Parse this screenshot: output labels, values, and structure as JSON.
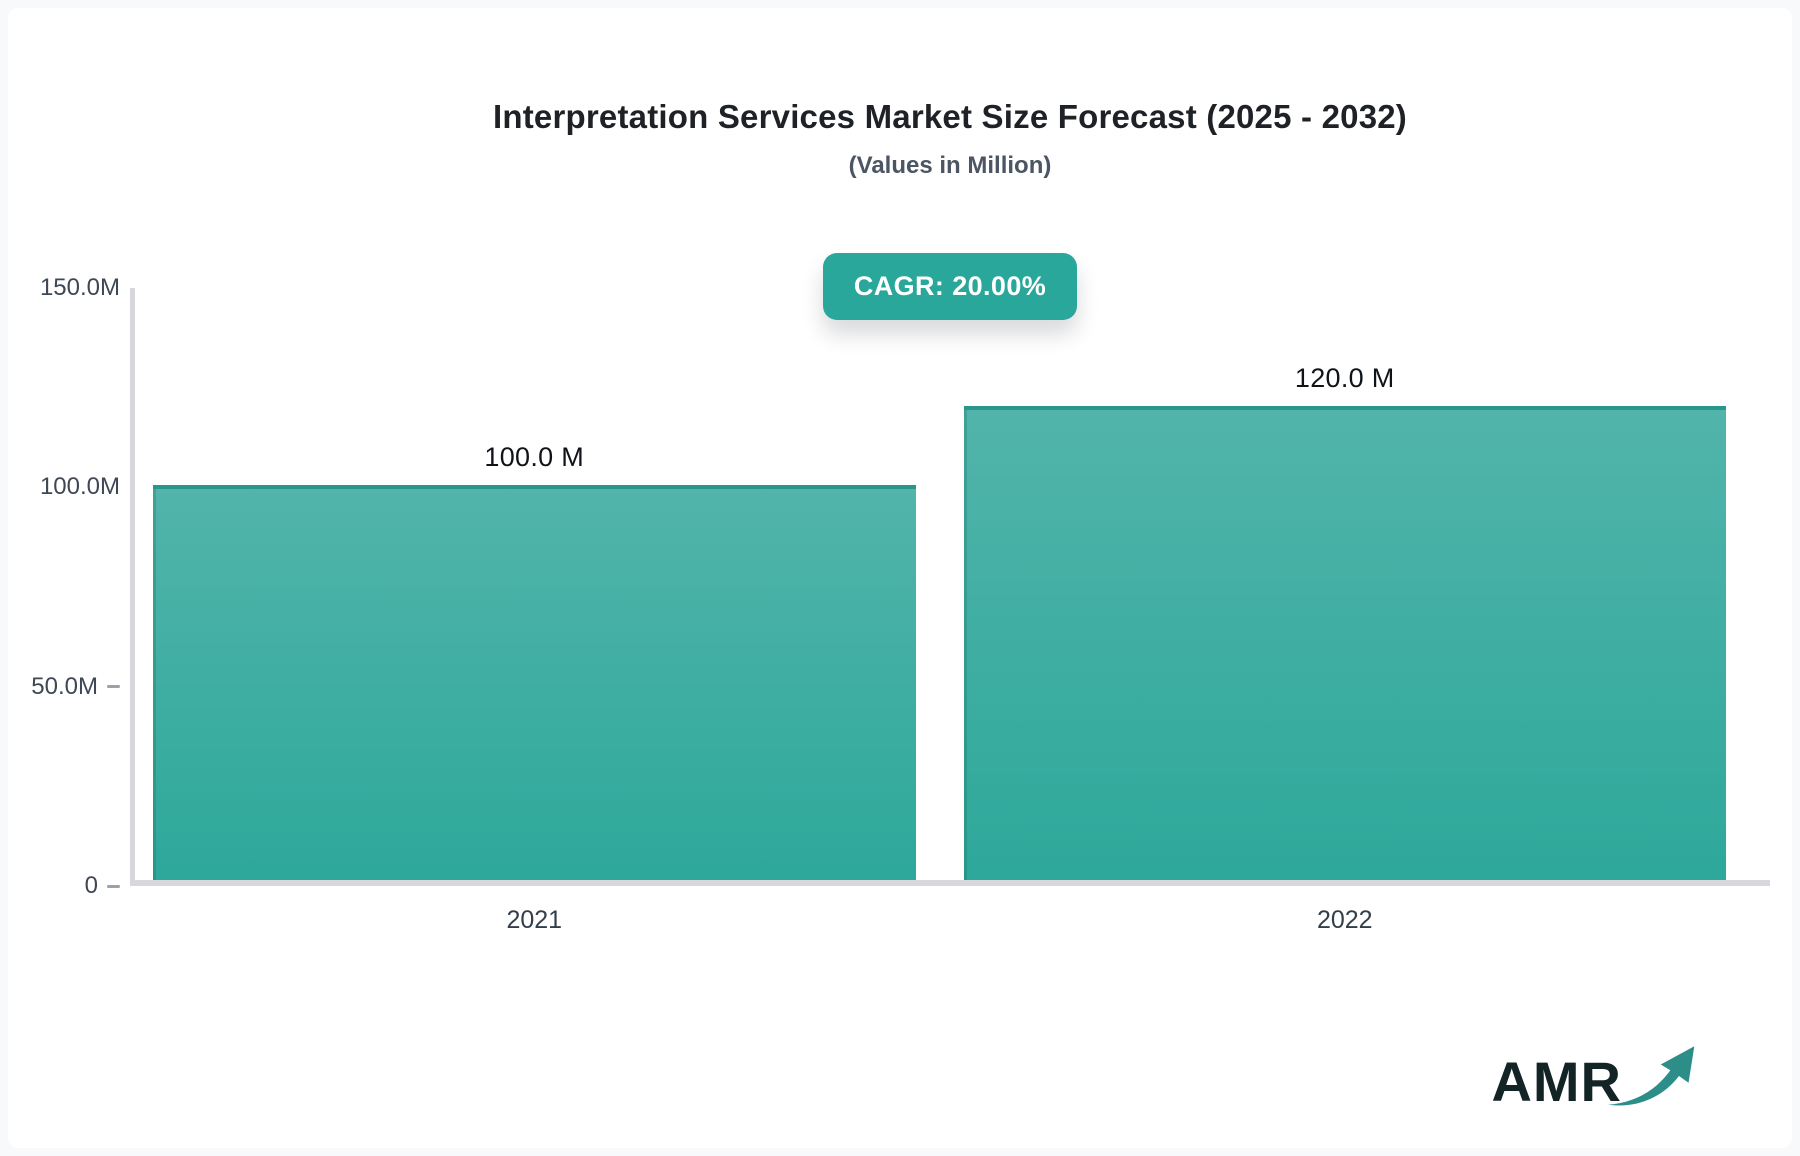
{
  "header": {
    "title": "Interpretation Services Market Size Forecast (2025 - 2032)",
    "subtitle": "(Values in Million)",
    "cagr_badge": "CAGR: 20.00%"
  },
  "chart_data": {
    "type": "bar",
    "title": "Interpretation Services Market Size Forecast (2025 - 2032)",
    "subtitle": "(Values in Million)",
    "cagr_percent": 20.0,
    "unit": "Million",
    "categories": [
      "2021",
      "2022"
    ],
    "values": [
      100.0,
      120.0
    ],
    "value_labels": [
      "100.0 M",
      "120.0 M"
    ],
    "ylim": [
      0,
      150
    ],
    "y_ticks": [
      {
        "label": "150.0M",
        "value": 150,
        "dash": false
      },
      {
        "label": "100.0M",
        "value": 100,
        "dash": false
      },
      {
        "label": "50.0M",
        "value": 50,
        "dash": true
      },
      {
        "label": "0",
        "value": 0,
        "dash": true
      }
    ],
    "grid": false,
    "legend": false,
    "xlabel": "",
    "ylabel": ""
  },
  "logo": {
    "text": "AMR",
    "arrow_icon": "trend-up-arrow"
  },
  "colors": {
    "accent_teal": "#2aa79b",
    "bar_gradient_top": "#52b4ab",
    "bar_gradient_bottom": "#2da89a",
    "bar_border_top": "#27968b",
    "axis_line": "#d6d8dd",
    "title_text": "#1e2126",
    "subtitle_text": "#4b5563",
    "tick_text": "#3e4854",
    "value_text": "#101418",
    "logo_text": "#132427",
    "logo_arrow": "#2d8e89",
    "badge_text": "#ffffff"
  }
}
